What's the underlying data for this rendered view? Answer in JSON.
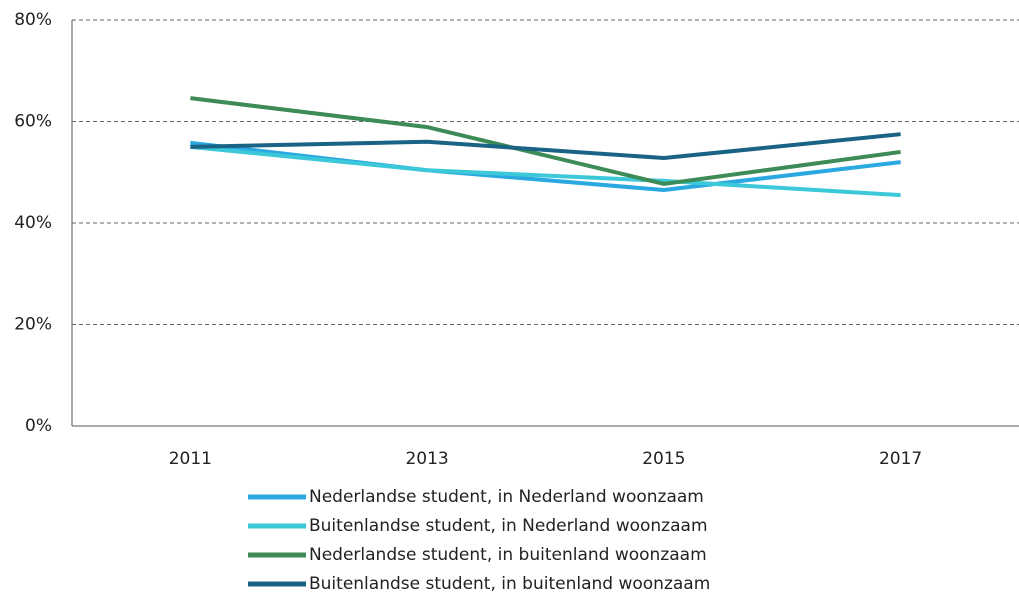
{
  "chart_data": {
    "type": "line",
    "categories": [
      "2011",
      "2013",
      "2015",
      "2017"
    ],
    "series": [
      {
        "name": "Nederlandse student, in Nederland woonzaam",
        "color": "#29a9e0",
        "values": [
          55.8,
          50.4,
          46.5,
          52.0
        ]
      },
      {
        "name": "Buitenlandse student, in Nederland woonzaam",
        "color": "#3cc8d8",
        "values": [
          55.0,
          50.4,
          48.3,
          45.5
        ]
      },
      {
        "name": "Nederlandse student, in buitenland woonzaam",
        "color": "#3d8b57",
        "values": [
          64.6,
          58.9,
          47.7,
          54.0
        ]
      },
      {
        "name": "Buitenlandse student, in buitenland woonzaam",
        "color": "#1a6385",
        "values": [
          55.0,
          56.0,
          52.8,
          57.5
        ]
      }
    ],
    "ylim": [
      0,
      80
    ],
    "yticks": [
      {
        "value": 0,
        "label": "0%"
      },
      {
        "value": 20,
        "label": "20%"
      },
      {
        "value": 40,
        "label": "40%"
      },
      {
        "value": 60,
        "label": "60%"
      },
      {
        "value": 80,
        "label": "80%"
      }
    ],
    "grid": true,
    "legend": "bottom"
  }
}
